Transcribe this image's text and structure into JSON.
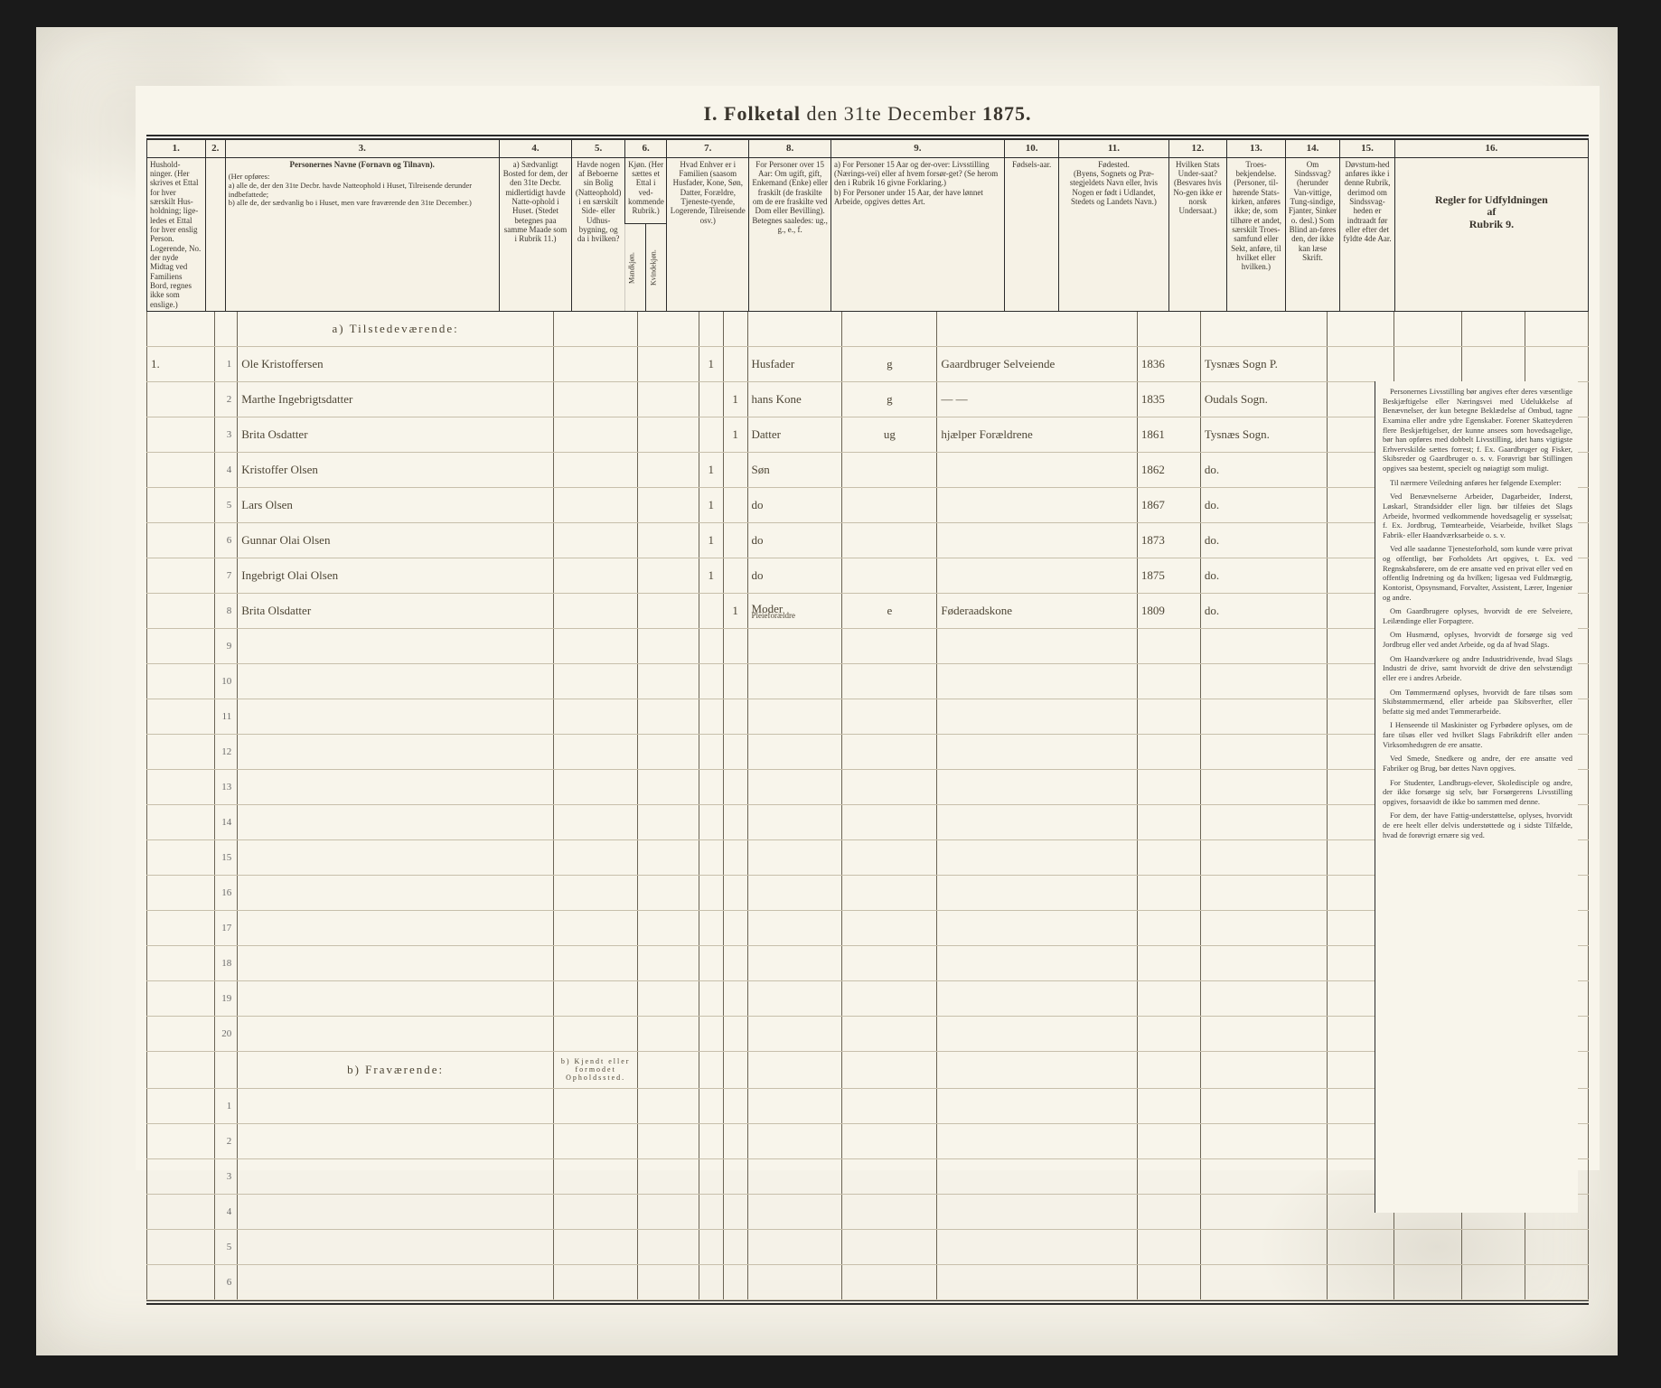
{
  "title_prefix": "I.  Folketal",
  "title_mid": "den 31te December",
  "title_year": "1875.",
  "col_nums": [
    "1.",
    "2.",
    "3.",
    "4.",
    "5.",
    "6.",
    "7.",
    "8.",
    "9.",
    "10.",
    "11.",
    "12.",
    "13.",
    "14.",
    "15.",
    "16."
  ],
  "hdr": {
    "c1": "Hushold-\nninger.\n(Her skrives et Ettal for hver særskilt Hus-holdning; lige-ledes et Ettal for hver enslig Person. Logerende, No. der nyde Midtag ved Familiens Bord, regnes ikke som enslige.)",
    "c3_title": "Personernes Navne (Fornavn og Tilnavn).",
    "c3_body": "(Her opføres:\na) alle de, der den 31te Decbr. havde Natteophold i Huset, Tilreisende derunder indbefattede;\nb) alle de, der sædvanlig bo i Huset, men vare fraværende den 31te December.)",
    "c4": "a) Sædvanligt Bosted for dem, der den 31te Decbr. midlertidigt havde Natte-ophold i Huset. (Stedet betegnes paa samme Maade som i Rubrik 11.)",
    "c5": "Havde nogen af Beboerne sin Bolig (Natteophold) i en særskilt Side- eller Udhus-bygning, og da i hvilken?",
    "c6": "Kjøn. (Her sættes et Ettal i ved-kommende Rubrik.)",
    "c6a": "Mandkjøn.",
    "c6b": "Kvindekjøn.",
    "c7": "Hvad Enhver er i Familien (saasom Husfader, Kone, Søn, Datter, Forældre, Tjeneste-tyende, Logerende, Tilreisende osv.)",
    "c8": "For Personer over 15 Aar: Om ugift, gift, Enkemand (Enke) eller fraskilt (de fraskilte om de ere fraskilte ved Dom eller Bevilling). Betegnes saaledes: ug., g., e., f.",
    "c9": "a) For Personer 15 Aar og der-over: Livsstilling (Nærings-vei) eller af hvem forsør-get? (Se herom den i Rubrik 16 givne Forklaring.)\nb) For Personer under 15 Aar, der have lønnet Arbeide, opgives dettes Art.",
    "c10": "Fødsels-aar.",
    "c11": "Fødested.\n(Byens, Sognets og Præ-stegjeldets Navn eller, hvis Nogen er født i Udlandet, Stedets og Landets Navn.)",
    "c12": "Hvilken Stats Under-saat?\n(Besvares hvis No-gen ikke er norsk Undersaat.)",
    "c13": "Troes-bekjendelse. (Personer, til-hørende Stats-kirken, anføres ikke; de, som tilhøre et andet, særskilt Troes-samfund eller Sekt, anføre, til hvilket eller hvilken.)",
    "c14": "Om Sindssvag? (herunder Van-vittige, Tung-sindige, Fjanter, Sinker o. desl.) Som Blind an-føres den, der ikke kan læse Skrift.",
    "c15": "Døvstum-hed anføres ikke i denne Rubrik, derimod om Sindssvag-heden er indtraadt før eller efter det fyldte 4de Aar.",
    "c16": "Regler for Udfyldningen\naf\nRubrik 9."
  },
  "section_a": "a) Tilstedeværende:",
  "section_b": "b) Fraværende:",
  "section_b_c4": "b) Kjendt eller formodet Opholdssted.",
  "rows_a": [
    {
      "n": "1",
      "hh": "1.",
      "name": "Ole Kristoffersen",
      "c5": "",
      "m": "1",
      "k": "",
      "fam": "Husfader",
      "civ": "g",
      "liv": "Gaardbruger Selveiende",
      "yr": "1836",
      "fs": "Tysnæs Sogn P."
    },
    {
      "n": "2",
      "hh": "",
      "name": "Marthe Ingebrigtsdatter",
      "c5": "",
      "m": "",
      "k": "1",
      "fam": "hans Kone",
      "civ": "g",
      "liv": "— —",
      "yr": "1835",
      "fs": "Oudals Sogn."
    },
    {
      "n": "3",
      "hh": "",
      "name": "Brita Osdatter",
      "c5": "",
      "m": "",
      "k": "1",
      "fam": "Datter",
      "civ": "ug",
      "liv": "hjælper Forældrene",
      "yr": "1861",
      "fs": "Tysnæs Sogn."
    },
    {
      "n": "4",
      "hh": "",
      "name": "Kristoffer Olsen",
      "c5": "",
      "m": "1",
      "k": "",
      "fam": "Søn",
      "civ": "",
      "liv": "",
      "yr": "1862",
      "fs": "do."
    },
    {
      "n": "5",
      "hh": "",
      "name": "Lars Olsen",
      "c5": "",
      "m": "1",
      "k": "",
      "fam": "do",
      "civ": "",
      "liv": "",
      "yr": "1867",
      "fs": "do."
    },
    {
      "n": "6",
      "hh": "",
      "name": "Gunnar Olai Olsen",
      "c5": "",
      "m": "1",
      "k": "",
      "fam": "do",
      "civ": "",
      "liv": "",
      "yr": "1873",
      "fs": "do."
    },
    {
      "n": "7",
      "hh": "",
      "name": "Ingebrigt Olai Olsen",
      "c5": "",
      "m": "1",
      "k": "",
      "fam": "do",
      "civ": "",
      "liv": "",
      "yr": "1875",
      "fs": "do."
    },
    {
      "n": "8",
      "hh": "",
      "name": "Brita Olsdatter",
      "c5": "",
      "m": "",
      "k": "1",
      "fam": "Moder",
      "civ": "e",
      "liv": "Føderaadskone",
      "yr": "1809",
      "fs": "do.",
      "extra": "Pleieforældre"
    }
  ],
  "blank_a_start": 9,
  "blank_a_end": 20,
  "blank_b_count": 6,
  "rubrik16": {
    "head": "",
    "paras": [
      "Personernes Livsstilling bør angives efter deres væsentlige Beskjæftigelse eller Næringsvei med Udelukkelse af Benævnelser, der kun betegne Beklædelse af Ombud, tagne Examina eller andre ydre Egenskaber. Forener Skatteyderen flere Beskjæftigelser, der kunne ansees som hovedsagelige, bør han opføres med dobbelt Livsstilling, idet hans vigtigste Erhvervskilde sættes forrest; f. Ex. Gaardbruger og Fisker, Skibsreder og Gaardbruger o. s. v. Forøvrigt bør Stillingen opgives saa bestemt, specielt og nøiagtigt som muligt.",
      "Til nærmere Veiledning anføres her følgende Exempler:",
      "Ved Benævnelserne Arbeider, Dagarbeider, Inderst, Løskarl, Strandsidder eller lign. bør tilføies det Slags Arbeide, hvormed vedkommende hovedsagelig er sysselsat; f. Ex. Jordbrug, Tømtearbeide, Veiarbeide, hvilket Slags Fabrik- eller Haandværksarbeide o. s. v.",
      "Ved alle saadanne Tjenesteforhold, som kunde være privat og offentligt, bør Forholdets Art opgives, t. Ex. ved Regnskabsførere, om de ere ansatte ved en privat eller ved en offentlig Indretning og da hvilken; ligesaa ved Fuldmægtig, Kontorist, Opsynsmand, Forvalter, Assistent, Lærer, Ingeniør og andre.",
      "Om Gaardbrugere oplyses, hvorvidt de ere Selveiere, Leilændinge eller Forpagtere.",
      "Om Husmænd, oplyses, hvorvidt de forsørge sig ved Jordbrug eller ved andet Arbeide, og da af hvad Slags.",
      "Om Haandværkere og andre Industridrivende, hvad Slags Industri de drive, samt hvorvidt de drive den selvstændigt eller ere i andres Arbeide.",
      "Om Tømmermænd oplyses, hvorvidt de fare tilsøs som Skibstømmermænd, eller arbeide paa Skibsverfter, eller befatte sig med andet Tømmerarbeide.",
      "I Henseende til Maskinister og Fyrbødere oplyses, om de fare tilsøs eller ved hvilket Slags Fabrikdrift eller anden Virksomhedsgren de ere ansatte.",
      "Ved Smede, Snedkere og andre, der ere ansatte ved Fabriker og Brug, bør dettes Navn opgives.",
      "For Studenter, Landbrugs-elever, Skoledisciple og andre, der ikke forsørge sig selv, bør Forsørgerens Livsstilling opgives, forsaavidt de ikke bo sammen med denne.",
      "For dem, der have Fattig-understøttelse, oplyses, hvorvidt de ere heelt eller delvis understøttede og i sidste Tilfælde, hvad de forøvrigt ernære sig ved."
    ]
  }
}
